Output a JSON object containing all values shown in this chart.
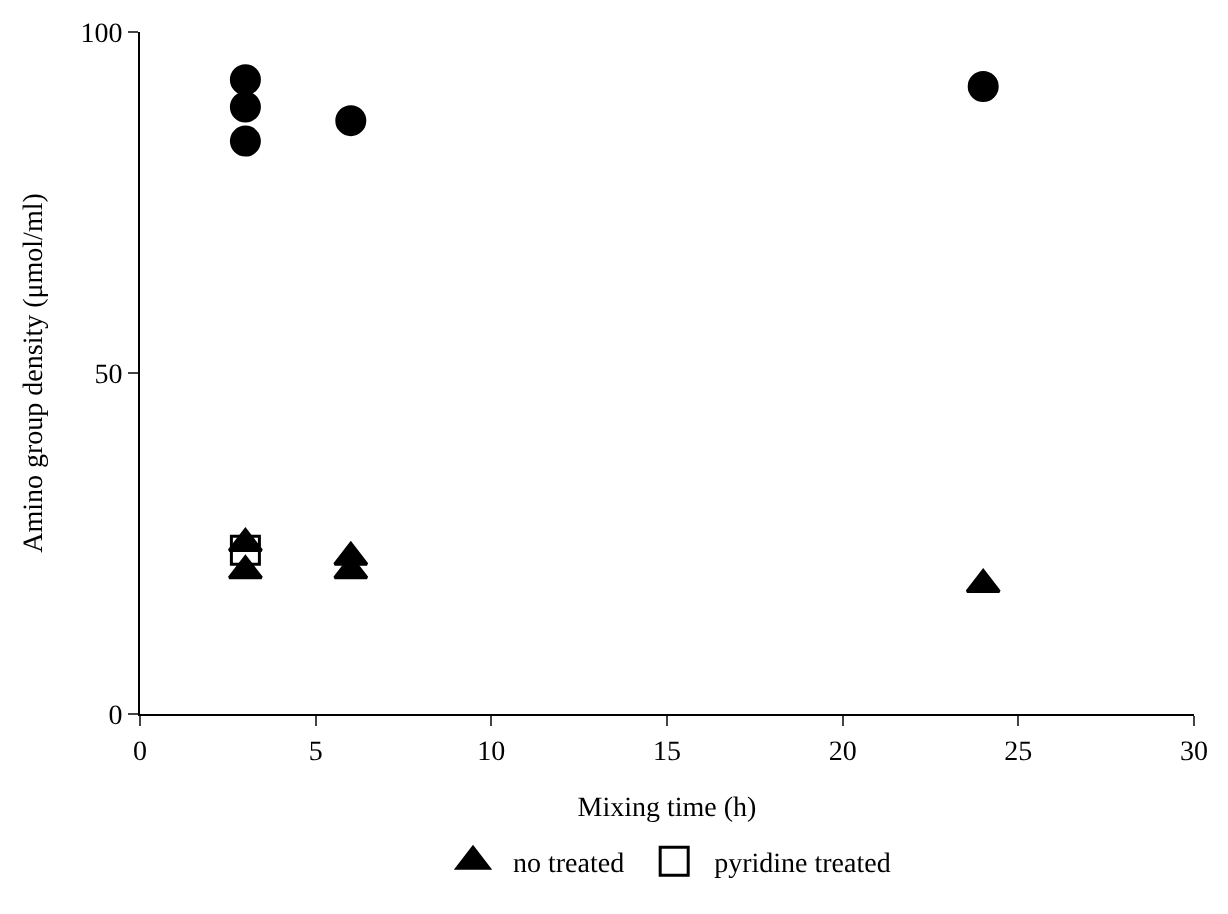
{
  "chart_data": {
    "type": "scatter",
    "xlabel": "Mixing time (h)",
    "ylabel": "Amino group density (μmol/ml)",
    "xlim": [
      0,
      30
    ],
    "xticks": [
      0,
      5,
      10,
      15,
      20,
      25,
      30
    ],
    "ylim": [
      0,
      100
    ],
    "yticks": [
      0,
      50,
      100
    ],
    "legend": "bottom",
    "series": [
      {
        "name": "no treated",
        "color": "#000000",
        "marker": "triangle",
        "x": [
          3,
          3,
          6,
          6,
          24
        ],
        "values": [
          21,
          25,
          21,
          23,
          19
        ]
      },
      {
        "name": "pyridine treated",
        "color": "#000000",
        "marker": "square",
        "x": [
          3
        ],
        "values": [
          24
        ]
      },
      {
        "color": "#000000",
        "marker": "circle",
        "x": [
          3,
          3,
          3,
          6,
          24
        ],
        "values": [
          93,
          89,
          84,
          87,
          92
        ]
      }
    ]
  }
}
